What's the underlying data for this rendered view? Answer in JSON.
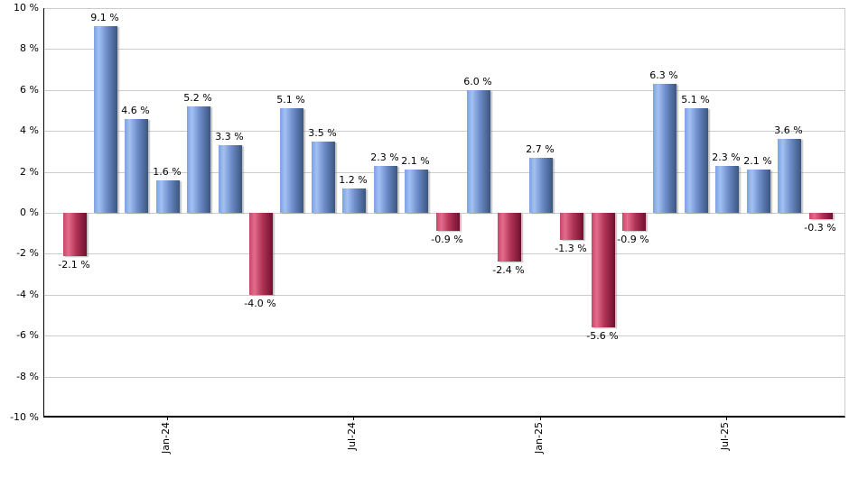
{
  "chart_data": {
    "type": "bar",
    "title": "",
    "xlabel": "",
    "ylabel": "",
    "ylim": [
      -10,
      10
    ],
    "grid": true,
    "legend": null,
    "y_ticks": [
      {
        "value": 10,
        "label": "10 %"
      },
      {
        "value": 8,
        "label": "8 %"
      },
      {
        "value": 6,
        "label": "6 %"
      },
      {
        "value": 4,
        "label": "4 %"
      },
      {
        "value": 2,
        "label": "2 %"
      },
      {
        "value": 0,
        "label": "0 %"
      },
      {
        "value": -2,
        "label": "-2 %"
      },
      {
        "value": -4,
        "label": "-4 %"
      },
      {
        "value": -6,
        "label": "-6 %"
      },
      {
        "value": -8,
        "label": "-8 %"
      },
      {
        "value": -10,
        "label": "-10 %"
      }
    ],
    "x_ticks": [
      {
        "label": "Jan-24",
        "bar_index": 3
      },
      {
        "label": "Jul-24",
        "bar_index": 9
      },
      {
        "label": "Jan-25",
        "bar_index": 15
      },
      {
        "label": "Jul-25",
        "bar_index": 21
      }
    ],
    "bars": [
      {
        "value": -2.1,
        "label": "-2.1 %"
      },
      {
        "value": 9.1,
        "label": "9.1 %"
      },
      {
        "value": 4.6,
        "label": "4.6 %"
      },
      {
        "value": 1.6,
        "label": "1.6 %"
      },
      {
        "value": 5.2,
        "label": "5.2 %"
      },
      {
        "value": 3.3,
        "label": "3.3 %"
      },
      {
        "value": -4.0,
        "label": "-4.0 %"
      },
      {
        "value": 5.1,
        "label": "5.1 %"
      },
      {
        "value": 3.5,
        "label": "3.5 %"
      },
      {
        "value": 1.2,
        "label": "1.2 %"
      },
      {
        "value": 2.3,
        "label": "2.3 %"
      },
      {
        "value": 2.1,
        "label": "2.1 %"
      },
      {
        "value": -0.9,
        "label": "-0.9 %"
      },
      {
        "value": 6.0,
        "label": "6.0 %"
      },
      {
        "value": -2.4,
        "label": "-2.4 %"
      },
      {
        "value": 2.7,
        "label": "2.7 %"
      },
      {
        "value": -1.3,
        "label": "-1.3 %"
      },
      {
        "value": -5.6,
        "label": "-5.6 %"
      },
      {
        "value": -0.9,
        "label": "-0.9 %"
      },
      {
        "value": 6.3,
        "label": "6.3 %"
      },
      {
        "value": 5.1,
        "label": "5.1 %"
      },
      {
        "value": 2.3,
        "label": "2.3 %"
      },
      {
        "value": 2.1,
        "label": "2.1 %"
      },
      {
        "value": 3.6,
        "label": "3.6 %"
      },
      {
        "value": -0.3,
        "label": "-0.3 %"
      }
    ],
    "colors": {
      "positive_gradient": [
        "#7DA2E2",
        "#A3C0F4",
        "#6C8CC9",
        "#3C557F"
      ],
      "negative_gradient": [
        "#C64768",
        "#E36C8C",
        "#B23457",
        "#6E1030"
      ],
      "grid": "#cccccc",
      "axis": "#000000",
      "label_text": "#000000"
    }
  }
}
